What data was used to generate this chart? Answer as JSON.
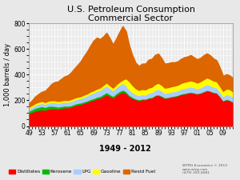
{
  "title": "U.S. Petroleum Consumption",
  "subtitle": "Commercial Sector",
  "xlabel": "1949 - 2012",
  "ylabel": "1,000 barrels / day",
  "years": [
    1949,
    1950,
    1951,
    1952,
    1953,
    1954,
    1955,
    1956,
    1957,
    1958,
    1959,
    1960,
    1961,
    1962,
    1963,
    1964,
    1965,
    1966,
    1967,
    1968,
    1969,
    1970,
    1971,
    1972,
    1973,
    1974,
    1975,
    1976,
    1977,
    1978,
    1979,
    1980,
    1981,
    1982,
    1983,
    1984,
    1985,
    1986,
    1987,
    1988,
    1989,
    1990,
    1991,
    1992,
    1993,
    1994,
    1995,
    1996,
    1997,
    1998,
    1999,
    2000,
    2001,
    2002,
    2003,
    2004,
    2005,
    2006,
    2007,
    2008,
    2009,
    2010,
    2011,
    2012
  ],
  "distillates": [
    100,
    110,
    120,
    125,
    130,
    125,
    135,
    138,
    138,
    135,
    140,
    145,
    145,
    150,
    160,
    168,
    172,
    180,
    188,
    198,
    205,
    215,
    220,
    235,
    248,
    235,
    222,
    242,
    258,
    268,
    258,
    232,
    218,
    208,
    202,
    208,
    208,
    218,
    222,
    238,
    242,
    232,
    218,
    222,
    228,
    232,
    238,
    248,
    252,
    258,
    262,
    258,
    252,
    258,
    268,
    278,
    272,
    262,
    258,
    232,
    198,
    208,
    202,
    188
  ],
  "kerosene": [
    18,
    20,
    22,
    24,
    25,
    23,
    22,
    20,
    18,
    16,
    15,
    14,
    13,
    12,
    12,
    11,
    11,
    11,
    11,
    12,
    12,
    13,
    14,
    15,
    16,
    14,
    13,
    14,
    15,
    16,
    14,
    11,
    9,
    7,
    6,
    6,
    5,
    5,
    5,
    5,
    5,
    5,
    5,
    5,
    5,
    5,
    5,
    5,
    5,
    5,
    5,
    4,
    4,
    4,
    4,
    4,
    4,
    4,
    4,
    3,
    3,
    3,
    3,
    3
  ],
  "lpg": [
    18,
    20,
    22,
    24,
    25,
    24,
    25,
    27,
    29,
    29,
    30,
    30,
    30,
    32,
    33,
    34,
    35,
    37,
    39,
    42,
    44,
    45,
    47,
    49,
    52,
    47,
    44,
    47,
    49,
    52,
    49,
    42,
    37,
    35,
    32,
    33,
    32,
    35,
    37,
    39,
    42,
    39,
    35,
    35,
    35,
    35,
    35,
    37,
    39,
    39,
    40,
    39,
    37,
    39,
    42,
    44,
    42,
    40,
    39,
    35,
    32,
    37,
    39,
    37
  ],
  "gasoline": [
    12,
    13,
    14,
    15,
    15,
    14,
    15,
    15,
    15,
    14,
    14,
    14,
    14,
    14,
    14,
    14,
    14,
    15,
    15,
    16,
    17,
    18,
    19,
    21,
    23,
    21,
    19,
    21,
    23,
    25,
    50,
    65,
    55,
    45,
    40,
    41,
    40,
    41,
    42,
    45,
    47,
    45,
    40,
    40,
    41,
    42,
    43,
    45,
    47,
    47,
    48,
    47,
    45,
    47,
    50,
    52,
    50,
    48,
    47,
    43,
    40,
    43,
    44,
    42
  ],
  "resid_fuel": [
    25,
    38,
    52,
    62,
    72,
    88,
    102,
    128,
    143,
    153,
    168,
    183,
    193,
    208,
    228,
    248,
    272,
    302,
    328,
    358,
    388,
    398,
    378,
    378,
    388,
    368,
    338,
    358,
    388,
    418,
    368,
    278,
    232,
    198,
    188,
    198,
    202,
    218,
    218,
    228,
    228,
    208,
    188,
    188,
    188,
    183,
    183,
    188,
    193,
    193,
    198,
    188,
    183,
    183,
    188,
    188,
    183,
    173,
    163,
    143,
    118,
    113,
    108,
    103
  ],
  "ylim": [
    0,
    800
  ],
  "yticks": [
    0,
    200,
    400,
    600,
    800
  ],
  "xtick_years": [
    1949,
    1953,
    1957,
    1961,
    1965,
    1969,
    1973,
    1977,
    1981,
    1985,
    1989,
    1993,
    1997,
    2001,
    2005,
    2009
  ],
  "xtick_labels": [
    "49",
    "53",
    "57",
    "61",
    "65",
    "69",
    "73",
    "77",
    "81",
    "85",
    "89",
    "93",
    "97",
    "01",
    "05",
    "09"
  ],
  "colors": {
    "distillates": "#ff0000",
    "kerosene": "#00bb00",
    "lpg": "#aaccff",
    "gasoline": "#ffff00",
    "resid_fuel": "#dd6600"
  },
  "legend_labels": [
    "Distillates",
    "Kerosene",
    "LPG",
    "Gasoline",
    "Resid Fuel"
  ],
  "fig_bg": "#e8e8e8",
  "plot_bg": "#ebebeb",
  "grid_color": "#ffffff",
  "title_fontsize": 8,
  "axis_fontsize": 6,
  "tick_fontsize": 5.5
}
